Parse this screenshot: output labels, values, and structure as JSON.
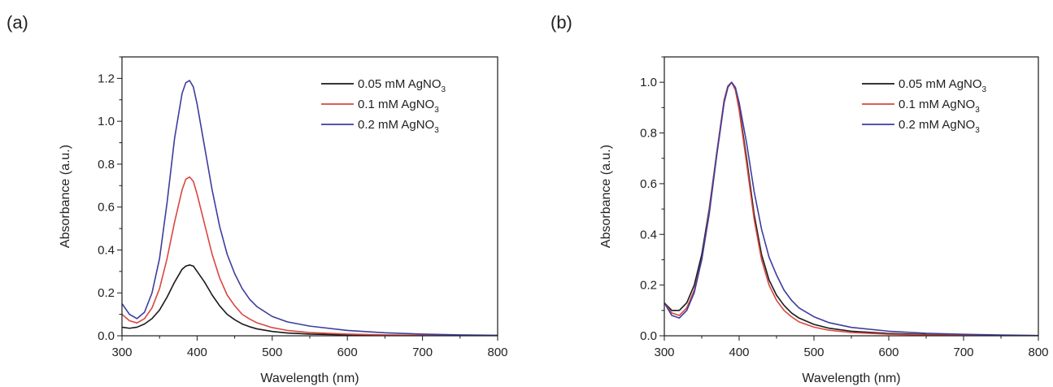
{
  "chart_data": [
    {
      "panel_label": "(a)",
      "type": "line",
      "xlabel": "Wavelength (nm)",
      "ylabel": "Absorbance (a.u.)",
      "xlim": [
        300,
        800
      ],
      "ylim": [
        0.0,
        1.3
      ],
      "xticks": [
        300,
        400,
        500,
        600,
        700,
        800
      ],
      "xtick_labels": [
        "300",
        "400",
        "500",
        "600",
        "700",
        "800"
      ],
      "yticks": [
        0.0,
        0.2,
        0.4,
        0.6,
        0.8,
        1.0,
        1.2
      ],
      "ytick_labels": [
        "0.0",
        "0.2",
        "0.4",
        "0.6",
        "0.8",
        "1.0",
        "1.2"
      ],
      "grid": false,
      "legend_position": "top-right",
      "series": [
        {
          "name": "0.05 mM AgNO3",
          "label_main": "0.05 mM AgNO",
          "label_sub": "3",
          "color": "#1a1a1a",
          "x": [
            300,
            310,
            320,
            330,
            340,
            350,
            360,
            370,
            380,
            385,
            390,
            395,
            400,
            410,
            420,
            430,
            440,
            450,
            460,
            470,
            480,
            500,
            520,
            550,
            600,
            650,
            700,
            750,
            800
          ],
          "y": [
            0.04,
            0.035,
            0.04,
            0.055,
            0.08,
            0.12,
            0.18,
            0.25,
            0.31,
            0.325,
            0.33,
            0.325,
            0.3,
            0.25,
            0.19,
            0.14,
            0.1,
            0.075,
            0.055,
            0.042,
            0.032,
            0.02,
            0.013,
            0.008,
            0.004,
            0.002,
            0.001,
            0.0005,
            0.0
          ]
        },
        {
          "name": "0.1 mM AgNO3",
          "label_main": "0.1 mM AgNO",
          "label_sub": "3",
          "color": "#d9473f",
          "x": [
            300,
            310,
            320,
            330,
            340,
            350,
            360,
            370,
            380,
            385,
            390,
            395,
            400,
            410,
            420,
            430,
            440,
            450,
            460,
            470,
            480,
            500,
            520,
            550,
            600,
            650,
            700,
            750,
            800
          ],
          "y": [
            0.1,
            0.07,
            0.06,
            0.08,
            0.13,
            0.22,
            0.36,
            0.53,
            0.68,
            0.73,
            0.74,
            0.72,
            0.66,
            0.52,
            0.38,
            0.27,
            0.19,
            0.14,
            0.1,
            0.078,
            0.06,
            0.038,
            0.025,
            0.015,
            0.008,
            0.004,
            0.002,
            0.001,
            0.0
          ]
        },
        {
          "name": "0.2 mM AgNO3",
          "label_main": "0.2 mM AgNO",
          "label_sub": "3",
          "color": "#3d3d9e",
          "x": [
            300,
            310,
            320,
            330,
            340,
            350,
            360,
            370,
            380,
            385,
            390,
            395,
            400,
            410,
            420,
            430,
            440,
            450,
            460,
            470,
            480,
            500,
            520,
            550,
            600,
            650,
            700,
            750,
            800
          ],
          "y": [
            0.15,
            0.1,
            0.08,
            0.11,
            0.2,
            0.36,
            0.62,
            0.92,
            1.13,
            1.18,
            1.19,
            1.16,
            1.08,
            0.88,
            0.68,
            0.51,
            0.38,
            0.29,
            0.22,
            0.17,
            0.135,
            0.09,
            0.065,
            0.045,
            0.025,
            0.014,
            0.008,
            0.004,
            0.002
          ]
        }
      ]
    },
    {
      "panel_label": "(b)",
      "type": "line",
      "xlabel": "Wavelength (nm)",
      "ylabel": "Absorbance (a.u.)",
      "xlim": [
        300,
        800
      ],
      "ylim": [
        0.0,
        1.1
      ],
      "xticks": [
        300,
        400,
        500,
        600,
        700,
        800
      ],
      "xtick_labels": [
        "300",
        "400",
        "500",
        "600",
        "700",
        "800"
      ],
      "yticks": [
        0.0,
        0.2,
        0.4,
        0.6,
        0.8,
        1.0
      ],
      "ytick_labels": [
        "0.0",
        "0.2",
        "0.4",
        "0.6",
        "0.8",
        "1.0"
      ],
      "grid": false,
      "legend_position": "top-right",
      "series": [
        {
          "name": "0.05 mM AgNO3",
          "label_main": "0.05 mM AgNO",
          "label_sub": "3",
          "color": "#1a1a1a",
          "x": [
            300,
            310,
            320,
            330,
            340,
            350,
            360,
            370,
            380,
            385,
            390,
            395,
            400,
            410,
            420,
            430,
            440,
            450,
            460,
            470,
            480,
            500,
            520,
            550,
            600,
            650,
            700,
            750,
            800
          ],
          "y": [
            0.13,
            0.1,
            0.1,
            0.13,
            0.2,
            0.32,
            0.5,
            0.72,
            0.93,
            0.985,
            1.0,
            0.97,
            0.9,
            0.7,
            0.48,
            0.32,
            0.22,
            0.16,
            0.12,
            0.09,
            0.07,
            0.045,
            0.03,
            0.018,
            0.009,
            0.005,
            0.003,
            0.001,
            0.0
          ]
        },
        {
          "name": "0.1 mM AgNO3",
          "label_main": "0.1 mM AgNO",
          "label_sub": "3",
          "color": "#d9473f",
          "x": [
            300,
            310,
            320,
            330,
            340,
            350,
            360,
            370,
            380,
            385,
            390,
            395,
            400,
            410,
            420,
            430,
            440,
            450,
            460,
            470,
            480,
            500,
            520,
            550,
            600,
            650,
            700,
            750,
            800
          ],
          "y": [
            0.13,
            0.09,
            0.08,
            0.11,
            0.18,
            0.3,
            0.49,
            0.72,
            0.93,
            0.985,
            1.0,
            0.97,
            0.89,
            0.68,
            0.46,
            0.3,
            0.2,
            0.14,
            0.1,
            0.075,
            0.055,
            0.034,
            0.022,
            0.013,
            0.006,
            0.003,
            0.002,
            0.001,
            0.0
          ]
        },
        {
          "name": "0.2 mM AgNO3",
          "label_main": "0.2 mM AgNO",
          "label_sub": "3",
          "color": "#3d3d9e",
          "x": [
            300,
            310,
            320,
            330,
            340,
            350,
            360,
            370,
            380,
            385,
            390,
            395,
            400,
            410,
            420,
            430,
            440,
            450,
            460,
            470,
            480,
            500,
            520,
            550,
            600,
            650,
            700,
            750,
            800
          ],
          "y": [
            0.13,
            0.08,
            0.07,
            0.1,
            0.17,
            0.3,
            0.48,
            0.71,
            0.92,
            0.98,
            1.0,
            0.98,
            0.92,
            0.76,
            0.57,
            0.42,
            0.31,
            0.24,
            0.18,
            0.14,
            0.11,
            0.075,
            0.052,
            0.033,
            0.018,
            0.01,
            0.006,
            0.003,
            0.001
          ]
        }
      ]
    }
  ]
}
